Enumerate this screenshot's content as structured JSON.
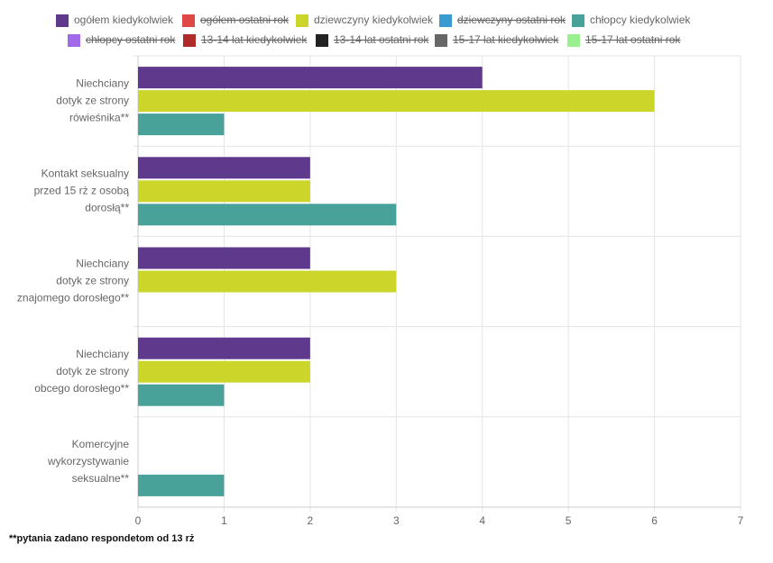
{
  "chart_data": {
    "type": "hbar",
    "categories": [
      [
        "Niechciany",
        "dotyk ze strony",
        "rówieśnika**"
      ],
      [
        "Kontakt seksualny",
        "przed 15 rż z osobą",
        "dorosłą**"
      ],
      [
        "Niechciany",
        "dotyk ze strony",
        "znajomego dorosłego**"
      ],
      [
        "Niechciany",
        "dotyk ze strony",
        "obcego dorosłego**"
      ],
      [
        "Komercyjne",
        "wykorzystywanie",
        "seksualne**"
      ]
    ],
    "series": [
      {
        "name": "ogółem kiedykolwiek",
        "color": "#5f3a8c",
        "values": [
          4,
          2,
          2,
          2,
          null
        ]
      },
      {
        "name": "ogółem ostatni rok",
        "color": "#e04848",
        "hidden": true
      },
      {
        "name": "dziewczyny kiedykolwiek",
        "color": "#cbd52a",
        "values": [
          6,
          2,
          3,
          2,
          null
        ]
      },
      {
        "name": "dziewczyny ostatni rok",
        "color": "#3a9bd0",
        "hidden": true
      },
      {
        "name": "chłopcy kiedykolwiek",
        "color": "#48a29a",
        "values": [
          1,
          3,
          null,
          1,
          1
        ]
      },
      {
        "name": "chłopcy ostatni rok",
        "color": "#a06ae8",
        "hidden": true
      },
      {
        "name": "13-14 lat kiedykolwiek",
        "color": "#b02a2a",
        "hidden": true
      },
      {
        "name": "13-14 lat ostatni rok",
        "color": "#222222",
        "hidden": true
      },
      {
        "name": "15-17 lat kiedykolwiek",
        "color": "#666666",
        "hidden": true
      },
      {
        "name": "15-17 lat ostatni rok",
        "color": "#9aef8e",
        "hidden": true
      }
    ],
    "xlim": [
      0,
      7
    ],
    "xticks": [
      0,
      1,
      2,
      3,
      4,
      5,
      6,
      7
    ],
    "grid": true,
    "footnote": "**pytania zadano respondetom od 13 rż"
  }
}
